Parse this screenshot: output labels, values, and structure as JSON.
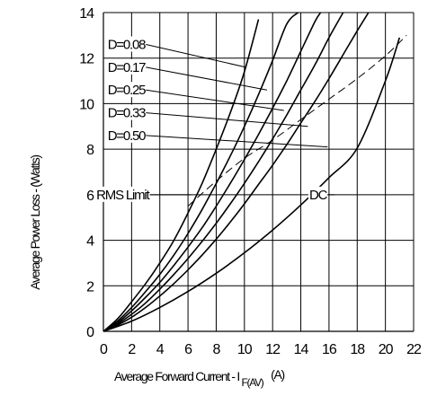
{
  "chart_data": {
    "type": "line",
    "xlabel_main": "Average Forward Current - I",
    "xlabel_sub": "F(AV)",
    "xlabel_unit": "(A)",
    "ylabel": "Average Power Loss - (Watts)",
    "xlim": [
      0,
      22
    ],
    "ylim": [
      0,
      14
    ],
    "x_ticks": [
      "0",
      "2",
      "4",
      "6",
      "8",
      "10",
      "12",
      "14",
      "16",
      "18",
      "20",
      "22"
    ],
    "y_ticks": [
      "0",
      "2",
      "4",
      "6",
      "8",
      "10",
      "12",
      "14"
    ],
    "grid": true,
    "series": [
      {
        "name": "D=0.08",
        "dashed": false,
        "points": [
          [
            0,
            0
          ],
          [
            1,
            0.55
          ],
          [
            2,
            1.3
          ],
          [
            3,
            2.1
          ],
          [
            4,
            3.0
          ],
          [
            5,
            4.0
          ],
          [
            6,
            5.2
          ],
          [
            7,
            6.5
          ],
          [
            8,
            8.0
          ],
          [
            9,
            9.6
          ],
          [
            10,
            11.4
          ],
          [
            11,
            13.7
          ]
        ]
      },
      {
        "name": "D=0.17",
        "dashed": false,
        "points": [
          [
            0,
            0
          ],
          [
            1,
            0.45
          ],
          [
            2,
            1.05
          ],
          [
            3,
            1.75
          ],
          [
            4,
            2.5
          ],
          [
            5,
            3.35
          ],
          [
            6,
            4.3
          ],
          [
            7,
            5.35
          ],
          [
            8,
            6.5
          ],
          [
            9,
            7.7
          ],
          [
            10,
            9.0
          ],
          [
            11,
            10.4
          ],
          [
            12,
            11.9
          ],
          [
            13,
            13.5
          ],
          [
            13.8,
            14.0
          ]
        ]
      },
      {
        "name": "D=0.25",
        "dashed": false,
        "points": [
          [
            0,
            0
          ],
          [
            1,
            0.38
          ],
          [
            2,
            0.9
          ],
          [
            3,
            1.5
          ],
          [
            4,
            2.15
          ],
          [
            5,
            2.9
          ],
          [
            6,
            3.7
          ],
          [
            7,
            4.55
          ],
          [
            8,
            5.5
          ],
          [
            9,
            6.5
          ],
          [
            10,
            7.55
          ],
          [
            11,
            8.65
          ],
          [
            12,
            9.8
          ],
          [
            13,
            11.0
          ],
          [
            14,
            12.3
          ],
          [
            15,
            13.6
          ],
          [
            15.4,
            14.0
          ]
        ]
      },
      {
        "name": "D=0.33",
        "dashed": false,
        "points": [
          [
            0,
            0
          ],
          [
            1,
            0.32
          ],
          [
            2,
            0.75
          ],
          [
            3,
            1.25
          ],
          [
            4,
            1.85
          ],
          [
            5,
            2.5
          ],
          [
            6,
            3.2
          ],
          [
            7,
            3.95
          ],
          [
            8,
            4.75
          ],
          [
            9,
            5.6
          ],
          [
            10,
            6.5
          ],
          [
            11,
            7.45
          ],
          [
            12,
            8.45
          ],
          [
            13,
            9.5
          ],
          [
            14,
            10.6
          ],
          [
            15,
            11.7
          ],
          [
            16,
            12.9
          ],
          [
            17,
            14.0
          ]
        ]
      },
      {
        "name": "D=0.50",
        "dashed": false,
        "points": [
          [
            0,
            0
          ],
          [
            1,
            0.27
          ],
          [
            2,
            0.62
          ],
          [
            3,
            1.05
          ],
          [
            4,
            1.55
          ],
          [
            5,
            2.1
          ],
          [
            6,
            2.7
          ],
          [
            7,
            3.35
          ],
          [
            8,
            4.05
          ],
          [
            9,
            4.8
          ],
          [
            10,
            5.6
          ],
          [
            11,
            6.45
          ],
          [
            12,
            7.3
          ],
          [
            13,
            8.2
          ],
          [
            14,
            9.15
          ],
          [
            15,
            10.1
          ],
          [
            16,
            11.1
          ],
          [
            17,
            12.15
          ],
          [
            18,
            13.2
          ],
          [
            18.8,
            14.0
          ]
        ]
      },
      {
        "name": "DC",
        "dashed": false,
        "points": [
          [
            0,
            0
          ],
          [
            2,
            0.45
          ],
          [
            4,
            1.05
          ],
          [
            6,
            1.75
          ],
          [
            8,
            2.55
          ],
          [
            10,
            3.45
          ],
          [
            12,
            4.45
          ],
          [
            14,
            5.55
          ],
          [
            16,
            6.75
          ],
          [
            18,
            8.05
          ],
          [
            20,
            11.0
          ],
          [
            21,
            12.9
          ]
        ]
      },
      {
        "name": "RMS Limit",
        "dashed": true,
        "points": [
          [
            6,
            5.5
          ],
          [
            8,
            6.6
          ],
          [
            10,
            7.6
          ],
          [
            12,
            8.4
          ],
          [
            14,
            9.3
          ],
          [
            16,
            10.2
          ],
          [
            18,
            11.1
          ],
          [
            20,
            12.1
          ],
          [
            21.5,
            13.0
          ]
        ]
      }
    ],
    "labels": [
      {
        "text": "D=0.08",
        "x": 0.3,
        "y": 12.6,
        "leader_to": [
          10.1,
          11.6
        ]
      },
      {
        "text": "D=0.17",
        "x": 0.3,
        "y": 11.6,
        "leader_to": [
          11.6,
          10.6
        ]
      },
      {
        "text": "D=0.25",
        "x": 0.3,
        "y": 10.6,
        "leader_to": [
          12.8,
          9.7
        ]
      },
      {
        "text": "D=0.33",
        "x": 0.3,
        "y": 9.6,
        "leader_to": [
          14.5,
          9.0
        ]
      },
      {
        "text": "D=0.50",
        "x": 0.3,
        "y": 8.6,
        "leader_to": [
          15.9,
          8.1
        ]
      },
      {
        "text": "RMS Limit",
        "x": -0.5,
        "y": 6.0,
        "leader_to": [
          6.2,
          6.0
        ]
      },
      {
        "text": "DC",
        "x": 14.6,
        "y": 6.0,
        "leader_to": [
          16.4,
          6.0
        ]
      }
    ]
  }
}
